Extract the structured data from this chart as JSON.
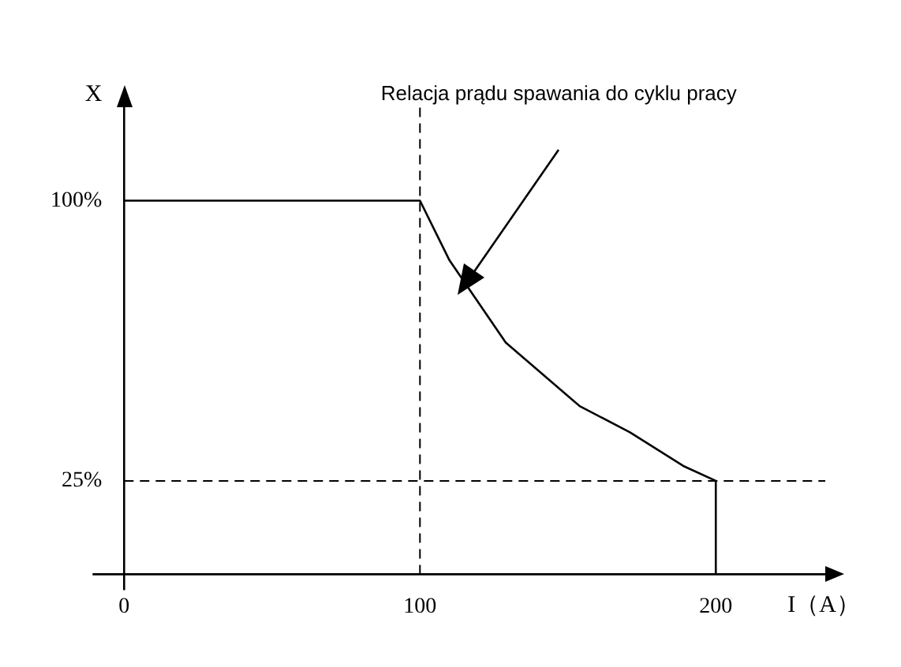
{
  "chart_data": {
    "type": "line",
    "xlabel": "I（A）",
    "ylabel": "X",
    "annotations": [
      "Relacja prądu spawania do cyklu pracy"
    ],
    "series": [
      {
        "color": "#000000",
        "x": [
          0,
          100,
          110,
          129,
          154,
          171,
          189,
          200,
          200
        ],
        "values": [
          100,
          100,
          84,
          62,
          45,
          38,
          29,
          25,
          0
        ]
      }
    ],
    "xlim": [
      0,
      237
    ],
    "xticks": [
      0,
      100,
      200
    ],
    "ylim": [
      0,
      125
    ],
    "yticks": [
      {
        "value": 25,
        "label": "25%"
      },
      {
        "value": 100,
        "label": "100%"
      }
    ],
    "ref_lines": [
      {
        "axis": "x",
        "value": 100,
        "line_style": "dashed",
        "color": "#000000"
      },
      {
        "axis": "y",
        "value": 25,
        "line_style": "dashed",
        "color": "#000000"
      }
    ],
    "grid": false,
    "legend": false,
    "marker": "none",
    "line_style": "solid"
  }
}
